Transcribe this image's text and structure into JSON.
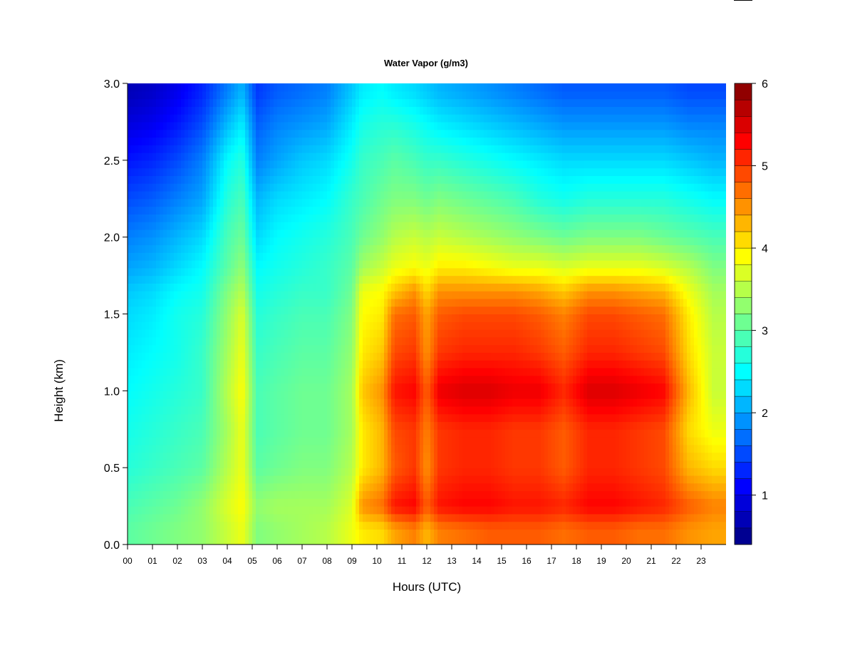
{
  "chart_data": {
    "type": "heatmap",
    "title": "Water Vapor (g/m3)",
    "xlabel": "Hours (UTC)",
    "ylabel": "Height (km)",
    "xlim": [
      0,
      24
    ],
    "ylim": [
      0.0,
      3.0
    ],
    "x_ticks": [
      "00",
      "01",
      "02",
      "03",
      "04",
      "05",
      "06",
      "07",
      "08",
      "09",
      "10",
      "11",
      "12",
      "13",
      "14",
      "15",
      "16",
      "17",
      "18",
      "19",
      "20",
      "21",
      "22",
      "23"
    ],
    "y_ticks": [
      "0.0",
      "0.5",
      "1.0",
      "1.5",
      "2.0",
      "2.5",
      "3.0"
    ],
    "colorbar": {
      "range": [
        0.4,
        6.0
      ],
      "ticks": [
        "1",
        "2",
        "3",
        "4",
        "5",
        "6"
      ],
      "colormap": [
        "#00007f",
        "#0000ff",
        "#0080ff",
        "#00ffff",
        "#80ff80",
        "#ffff00",
        "#ff8000",
        "#ff0000",
        "#7f0000"
      ]
    },
    "heights_km": [
      0.1,
      0.25,
      0.5,
      0.75,
      1.0,
      1.25,
      1.5,
      1.65,
      1.8,
      2.0,
      2.25,
      2.5,
      2.75,
      2.95
    ],
    "columns": [
      {
        "hour": 0.0,
        "values": [
          3.0,
          2.9,
          2.7,
          2.6,
          2.5,
          2.4,
          2.3,
          2.2,
          2.0,
          1.8,
          1.5,
          1.2,
          0.9,
          0.7
        ]
      },
      {
        "hour": 1.0,
        "values": [
          3.1,
          3.0,
          2.8,
          2.7,
          2.6,
          2.5,
          2.4,
          2.3,
          2.1,
          1.9,
          1.6,
          1.3,
          1.0,
          0.8
        ]
      },
      {
        "hour": 2.0,
        "values": [
          3.2,
          3.1,
          2.9,
          2.8,
          2.7,
          2.6,
          2.6,
          2.5,
          2.3,
          2.1,
          1.8,
          1.5,
          1.2,
          1.0
        ]
      },
      {
        "hour": 3.0,
        "values": [
          3.3,
          3.3,
          3.0,
          2.9,
          2.8,
          2.8,
          2.7,
          2.6,
          2.5,
          2.3,
          2.0,
          1.8,
          1.5,
          1.3
        ]
      },
      {
        "hour": 4.0,
        "values": [
          3.6,
          3.7,
          3.5,
          3.4,
          3.5,
          3.4,
          3.3,
          3.2,
          3.0,
          2.9,
          2.7,
          2.5,
          2.1,
          1.8
        ]
      },
      {
        "hour": 4.6,
        "values": [
          3.8,
          3.9,
          3.8,
          3.8,
          3.9,
          3.8,
          3.7,
          3.5,
          3.3,
          3.1,
          2.9,
          2.7,
          2.4,
          2.1
        ]
      },
      {
        "hour": 5.2,
        "values": [
          3.2,
          3.3,
          3.0,
          2.9,
          2.9,
          2.8,
          2.7,
          2.6,
          2.5,
          2.3,
          2.1,
          1.8,
          1.6,
          1.4
        ]
      },
      {
        "hour": 6.0,
        "values": [
          3.3,
          3.4,
          3.1,
          3.0,
          3.0,
          2.9,
          2.8,
          2.7,
          2.6,
          2.5,
          2.3,
          2.0,
          1.8,
          1.6
        ]
      },
      {
        "hour": 7.0,
        "values": [
          3.4,
          3.4,
          3.2,
          3.1,
          3.1,
          3.0,
          2.9,
          2.8,
          2.7,
          2.6,
          2.4,
          2.2,
          1.9,
          1.7
        ]
      },
      {
        "hour": 8.0,
        "values": [
          3.5,
          3.4,
          3.2,
          3.1,
          3.1,
          3.0,
          2.9,
          2.8,
          2.8,
          2.7,
          2.5,
          2.3,
          2.0,
          1.8
        ]
      },
      {
        "hour": 9.0,
        "values": [
          3.8,
          3.7,
          3.5,
          3.4,
          3.4,
          3.3,
          3.2,
          3.1,
          3.0,
          2.9,
          2.8,
          2.6,
          2.4,
          2.2
        ]
      },
      {
        "hour": 9.4,
        "values": [
          4.0,
          4.5,
          4.0,
          4.0,
          4.2,
          4.0,
          3.9,
          3.8,
          3.4,
          3.1,
          2.9,
          2.8,
          2.6,
          2.4
        ]
      },
      {
        "hour": 10.2,
        "values": [
          4.1,
          4.7,
          4.3,
          4.3,
          4.5,
          4.2,
          4.0,
          3.9,
          3.6,
          3.3,
          3.1,
          2.9,
          2.7,
          2.5
        ]
      },
      {
        "hour": 10.7,
        "values": [
          4.4,
          5.2,
          4.8,
          4.9,
          5.2,
          4.9,
          4.7,
          4.2,
          3.8,
          3.5,
          3.2,
          3.0,
          2.7,
          2.4
        ]
      },
      {
        "hour": 11.5,
        "values": [
          4.6,
          5.3,
          5.0,
          5.0,
          5.3,
          5.0,
          4.8,
          4.5,
          3.9,
          3.6,
          3.2,
          2.9,
          2.6,
          2.3
        ]
      },
      {
        "hour": 12.0,
        "values": [
          4.3,
          4.8,
          4.5,
          4.6,
          4.8,
          4.5,
          4.4,
          4.1,
          3.8,
          3.5,
          3.1,
          2.8,
          2.5,
          2.2
        ]
      },
      {
        "hour": 12.5,
        "values": [
          4.6,
          5.2,
          5.0,
          5.0,
          5.4,
          5.0,
          4.8,
          4.5,
          4.0,
          3.6,
          3.2,
          2.8,
          2.4,
          2.1
        ]
      },
      {
        "hour": 13.5,
        "values": [
          4.7,
          5.3,
          5.1,
          5.1,
          5.5,
          5.1,
          4.9,
          4.5,
          4.0,
          3.5,
          3.1,
          2.7,
          2.3,
          2.0
        ]
      },
      {
        "hour": 14.5,
        "values": [
          4.8,
          5.3,
          5.1,
          5.1,
          5.5,
          5.1,
          4.9,
          4.5,
          3.9,
          3.4,
          3.0,
          2.6,
          2.2,
          1.9
        ]
      },
      {
        "hour": 15.5,
        "values": [
          4.8,
          5.2,
          5.0,
          5.0,
          5.4,
          5.1,
          4.9,
          4.5,
          3.8,
          3.3,
          2.9,
          2.5,
          2.1,
          1.8
        ]
      },
      {
        "hour": 16.5,
        "values": [
          4.8,
          5.2,
          5.0,
          5.0,
          5.4,
          5.0,
          4.8,
          4.4,
          3.8,
          3.2,
          2.7,
          2.4,
          2.0,
          1.7
        ]
      },
      {
        "hour": 17.5,
        "values": [
          4.7,
          5.1,
          4.8,
          4.8,
          5.1,
          4.8,
          4.6,
          4.2,
          3.7,
          3.1,
          2.6,
          2.3,
          1.9,
          1.6
        ]
      },
      {
        "hour": 18.5,
        "values": [
          4.8,
          5.3,
          5.1,
          5.1,
          5.5,
          5.1,
          4.9,
          4.5,
          3.8,
          3.2,
          2.7,
          2.3,
          1.9,
          1.6
        ]
      },
      {
        "hour": 19.5,
        "values": [
          4.8,
          5.3,
          5.1,
          5.1,
          5.5,
          5.1,
          4.9,
          4.5,
          3.8,
          3.2,
          2.7,
          2.3,
          1.9,
          1.6
        ]
      },
      {
        "hour": 20.5,
        "values": [
          4.7,
          5.2,
          5.0,
          5.0,
          5.4,
          5.0,
          4.8,
          4.4,
          3.8,
          3.2,
          2.7,
          2.3,
          1.9,
          1.6
        ]
      },
      {
        "hour": 21.5,
        "values": [
          4.7,
          5.1,
          4.9,
          4.9,
          5.3,
          4.9,
          4.7,
          4.3,
          3.7,
          3.1,
          2.7,
          2.3,
          1.9,
          1.6
        ]
      },
      {
        "hour": 22.5,
        "values": [
          4.5,
          4.8,
          4.3,
          4.1,
          4.3,
          4.1,
          4.0,
          3.8,
          3.5,
          3.0,
          2.6,
          2.2,
          1.8,
          1.5
        ]
      },
      {
        "hour": 23.5,
        "values": [
          4.4,
          4.6,
          4.1,
          3.8,
          3.6,
          3.6,
          3.5,
          3.4,
          3.2,
          2.9,
          2.5,
          2.1,
          1.8,
          1.5
        ]
      }
    ]
  }
}
